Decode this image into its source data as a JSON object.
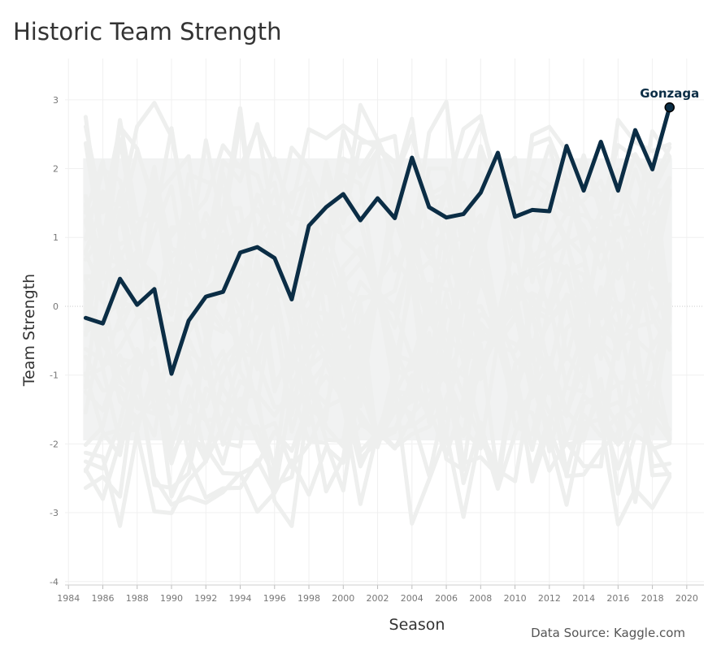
{
  "title": "Historic Team Strength",
  "source": "Data Source: Kaggle.com",
  "colors": {
    "highlight": "#0b2d45",
    "background_lines": "#eeefee",
    "grid": "#f0f0f0",
    "zero_line": "#c8c8c8"
  },
  "chart_data": {
    "type": "line",
    "title": "Historic Team Strength",
    "xlabel": "Season",
    "ylabel": "Team Strength",
    "xlim": [
      1983.8,
      2021
    ],
    "ylim": [
      -4.05,
      3.6
    ],
    "x_ticks": [
      1984,
      1986,
      1988,
      1990,
      1992,
      1994,
      1996,
      1998,
      2000,
      2002,
      2004,
      2006,
      2008,
      2010,
      2012,
      2014,
      2016,
      2018,
      2020
    ],
    "y_ticks": [
      -4,
      -3,
      -2,
      -1,
      0,
      1,
      2,
      3
    ],
    "grid": true,
    "legend": "none",
    "annotation": {
      "text": "Gonzaga",
      "x": 2019,
      "y": 2.89
    },
    "series": [
      {
        "name": "Gonzaga",
        "highlighted": true,
        "x": [
          1985,
          1986,
          1987,
          1988,
          1989,
          1990,
          1991,
          1992,
          1993,
          1994,
          1995,
          1996,
          1997,
          1998,
          1999,
          2000,
          2001,
          2002,
          2003,
          2004,
          2005,
          2006,
          2007,
          2008,
          2009,
          2010,
          2011,
          2012,
          2013,
          2014,
          2015,
          2016,
          2017,
          2018,
          2019
        ],
        "values": [
          -0.17,
          -0.25,
          0.4,
          0.02,
          0.25,
          -0.98,
          -0.21,
          0.14,
          0.21,
          0.78,
          0.86,
          0.7,
          0.1,
          1.17,
          1.44,
          1.63,
          1.25,
          1.57,
          1.28,
          2.16,
          1.44,
          1.29,
          1.34,
          1.65,
          2.23,
          1.3,
          1.4,
          1.38,
          2.33,
          1.68,
          2.39,
          1.68,
          2.56,
          1.99,
          2.89
        ]
      }
    ]
  }
}
